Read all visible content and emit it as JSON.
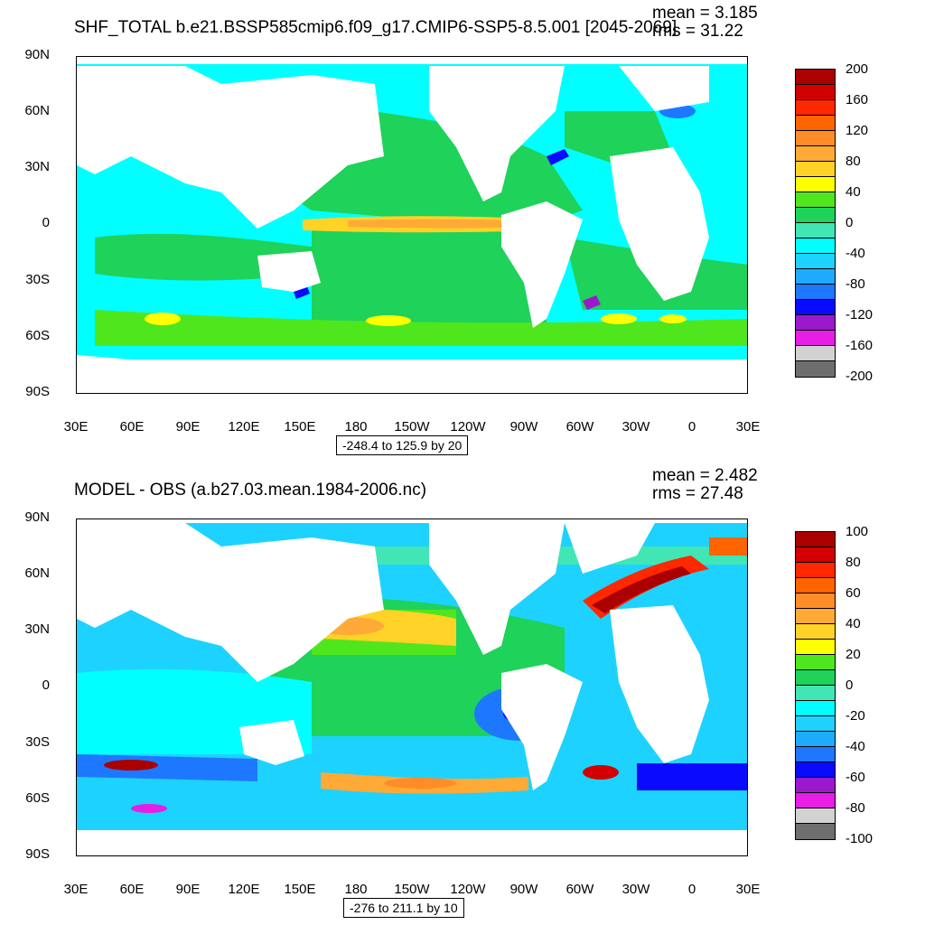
{
  "top": {
    "title": "SHF_TOTAL b.e21.BSSP585cmip6.f09_g17.CMIP6-SSP5-8.5.001 [2045-2069]",
    "mean": "mean = 3.185",
    "rms": "rms = 31.22",
    "range": "-248.4 to 125.9 by 20",
    "colorbar_labels": [
      "200",
      "160",
      "120",
      "80",
      "40",
      "0",
      "-40",
      "-80",
      "-120",
      "-160",
      "-200"
    ]
  },
  "bottom": {
    "title": "MODEL - OBS (a.b27.03.mean.1984-2006.nc)",
    "mean": "mean = 2.482",
    "rms": "rms = 27.48",
    "range": "-276 to 211.1 by 10",
    "colorbar_labels": [
      "100",
      "80",
      "60",
      "40",
      "20",
      "0",
      "-20",
      "-40",
      "-60",
      "-80",
      "-100"
    ]
  },
  "lat_labels": [
    "90N",
    "60N",
    "30N",
    "0",
    "30S",
    "60S",
    "90S"
  ],
  "lon_labels": [
    "30E",
    "60E",
    "90E",
    "120E",
    "150E",
    "180",
    "150W",
    "120W",
    "90W",
    "60W",
    "30W",
    "0",
    "30E"
  ],
  "colormap": [
    "#6e6e6e",
    "#d2d2d2",
    "#e61ee6",
    "#9b19cd",
    "#0a0aff",
    "#1e78ff",
    "#1eaaff",
    "#1ed2ff",
    "#00ffff",
    "#41e6b4",
    "#1ed25a",
    "#50e61e",
    "#ffff00",
    "#ffd228",
    "#ffaa37",
    "#ff8c28",
    "#ff6400",
    "#ff2800",
    "#d20000",
    "#aa0000"
  ]
}
